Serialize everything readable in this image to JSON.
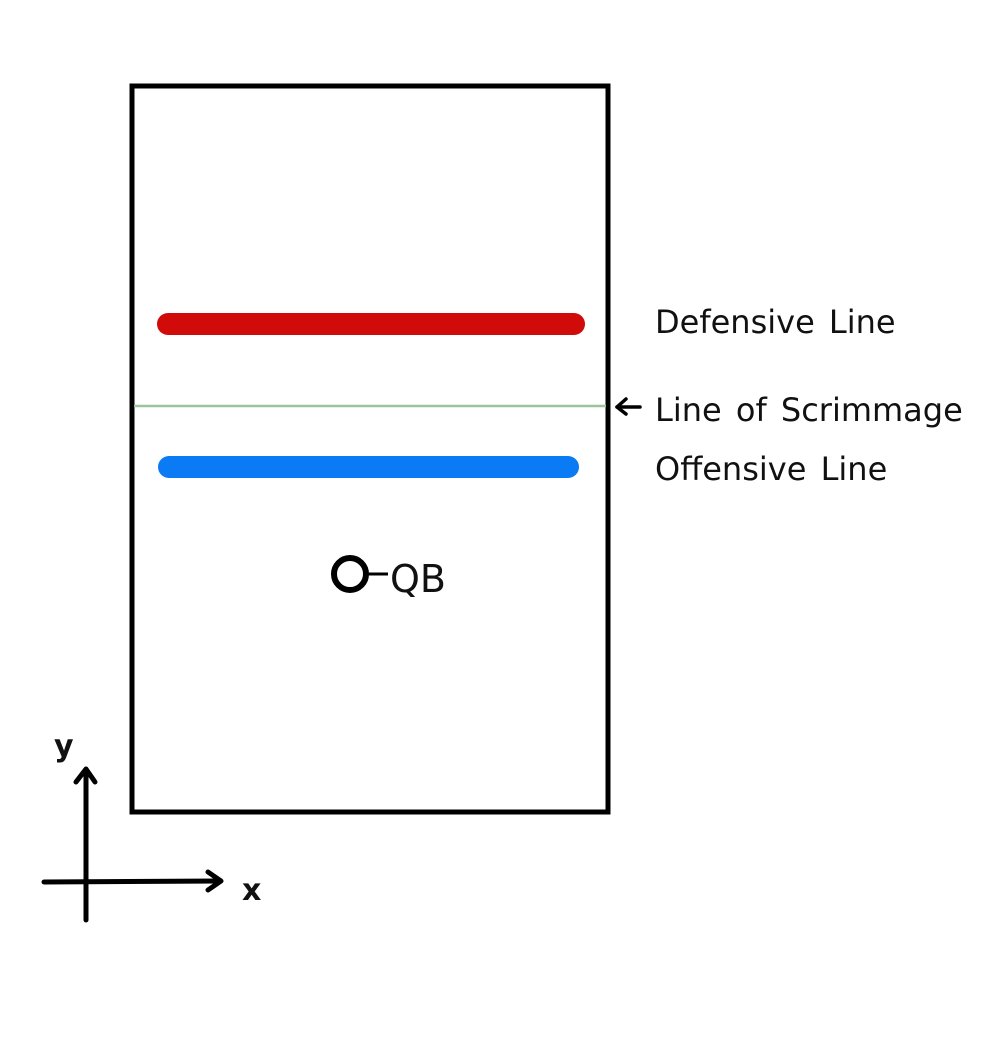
{
  "labels": {
    "defensive_line": "Defensive Line",
    "line_of_scrimmage": "Line of Scrimmage",
    "offensive_line": "Offensive Line",
    "qb": "QB",
    "axis_x": "x",
    "axis_y": "y"
  },
  "colors": {
    "defensive_line": "#d10a0a",
    "offensive_line": "#0a7bf5",
    "line_of_scrimmage": "#9cc49a",
    "field_border": "#000000"
  }
}
